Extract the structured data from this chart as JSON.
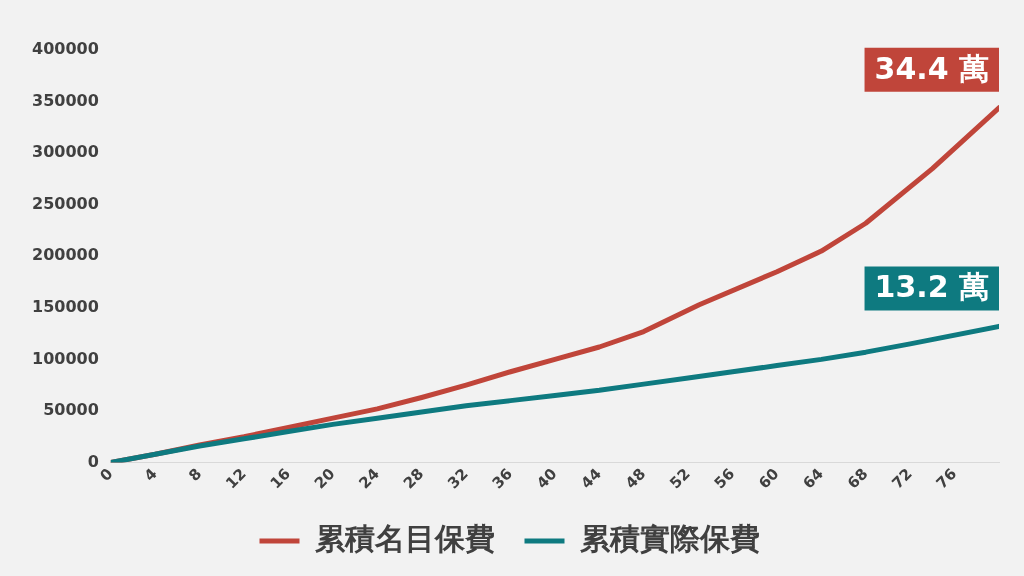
{
  "chart_data": {
    "type": "line",
    "xlim": [
      0,
      80
    ],
    "xticks": [
      0,
      4,
      8,
      12,
      16,
      20,
      24,
      28,
      32,
      36,
      40,
      44,
      48,
      52,
      56,
      60,
      64,
      68,
      72,
      76
    ],
    "ylim": [
      0,
      400000
    ],
    "yticks": [
      0,
      50000,
      100000,
      150000,
      200000,
      250000,
      300000,
      350000,
      400000
    ],
    "grid": false,
    "legend": "bottom",
    "marker": "none",
    "line_style": "solid",
    "series": [
      {
        "name": "累積名目保費",
        "color": "#c0453a",
        "x": [
          0,
          4,
          8,
          12,
          16,
          20,
          24,
          28,
          32,
          36,
          40,
          44,
          48,
          53,
          60,
          64,
          68,
          74,
          80
        ],
        "values": [
          0,
          8000,
          17000,
          25000,
          34000,
          43000,
          52000,
          63000,
          75000,
          88000,
          100000,
          112000,
          127000,
          153000,
          185000,
          205000,
          232000,
          285000,
          344000
        ]
      },
      {
        "name": "累積實際保費",
        "color": "#0e7a80",
        "x": [
          0,
          4,
          8,
          12,
          16,
          20,
          24,
          28,
          32,
          36,
          40,
          44,
          48,
          52,
          56,
          60,
          64,
          68,
          72,
          80
        ],
        "values": [
          0,
          8000,
          16000,
          23000,
          30000,
          37000,
          43000,
          49000,
          55000,
          60000,
          65000,
          70000,
          76000,
          82000,
          88000,
          94000,
          100000,
          107000,
          115000,
          132000
        ]
      }
    ],
    "annotations": [
      {
        "text": "34.4 萬",
        "x": 80,
        "y": 344000
      },
      {
        "text": "13.2 萬",
        "x": 80,
        "y": 132000
      }
    ]
  }
}
